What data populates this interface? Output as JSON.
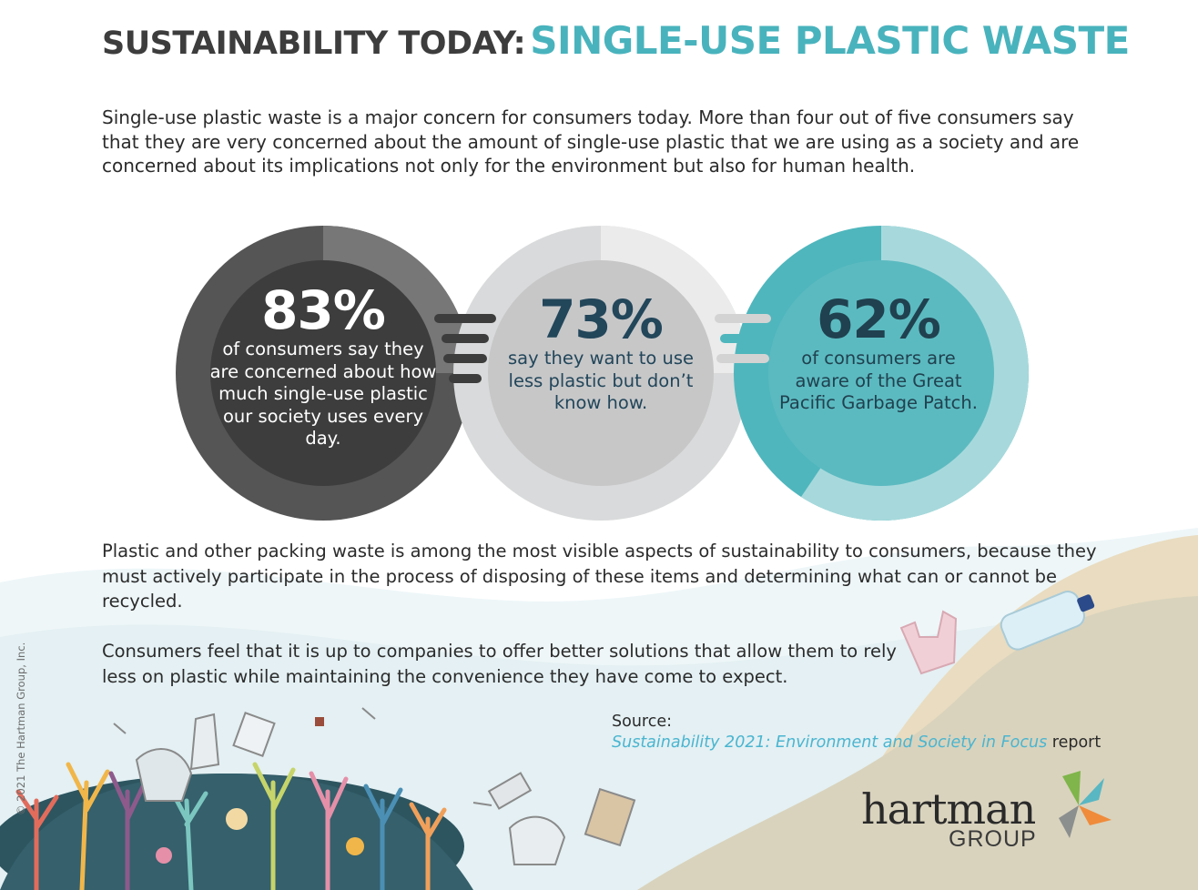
{
  "header": {
    "title_part1": "SUSTAINABILITY TODAY:",
    "title_part2": "SINGLE-USE PLASTIC WASTE"
  },
  "intro": "Single-use plastic waste is a major concern for consumers today. More than four out of five consumers say that they are very concerned about the amount of single-use plastic that we are using as a society and are concerned about its implications not only for the environment but also for human health.",
  "stats": [
    {
      "value": "83%",
      "text": "of consumers say they are concerned about how much single-use plastic our society uses every day.",
      "color": "#3d3d3d"
    },
    {
      "value": "73%",
      "text": "say they want to use less plastic but don’t know how.",
      "color": "#c9c9c9"
    },
    {
      "value": "62%",
      "text": "of consumers are aware of the Great Pacific Garbage Patch.",
      "color": "#4fb6bd"
    }
  ],
  "body": {
    "para1": "Plastic and other packing waste is among the most visible aspects of sustainability to consumers, because they must actively participate in the process of disposing of these items and determining what can or cannot be recycled.",
    "para2": "Consumers feel that it is up to companies to offer better solutions that allow them to rely less on plastic while maintaining the convenience they have come to expect."
  },
  "source": {
    "label": "Source:",
    "report_title": "Sustainability 2021: Environment and Society in Focus",
    "suffix": " report"
  },
  "logo": {
    "word": "hartman",
    "sub": "GROUP"
  },
  "copyright": "© 2021 The Hartman Group, Inc.",
  "colors": {
    "accent_teal": "#49b3bd",
    "dark_gray": "#3d3d3d",
    "light_gray": "#c9c9c9",
    "sand": "#d8d0b6"
  }
}
